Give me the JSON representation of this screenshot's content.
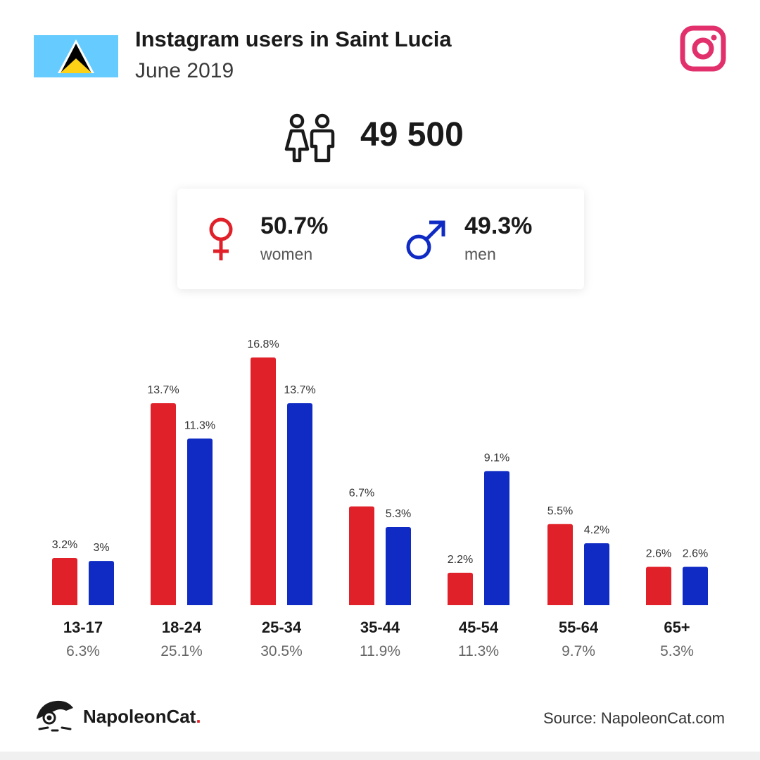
{
  "header": {
    "title": "Instagram users in Saint Lucia",
    "subtitle": "June 2019"
  },
  "flag": {
    "name": "saint-lucia-flag",
    "colors": {
      "field": "#66ccff",
      "white": "#ffffff",
      "black": "#000000",
      "yellow": "#fcd116"
    }
  },
  "brand_icon": {
    "name": "instagram-icon",
    "color": "#e1306c"
  },
  "total": {
    "value": "49 500",
    "icon": "people-icon"
  },
  "gender": {
    "women": {
      "pct": "50.7%",
      "label": "women",
      "icon": "female-symbol-icon",
      "color": "#e0212a"
    },
    "men": {
      "pct": "49.3%",
      "label": "men",
      "icon": "male-symbol-icon",
      "color": "#0f2bc4"
    }
  },
  "chart_data": {
    "type": "bar",
    "categories": [
      "13-17",
      "18-24",
      "25-34",
      "35-44",
      "45-54",
      "55-64",
      "65+"
    ],
    "totals": [
      "6.3%",
      "25.1%",
      "30.5%",
      "11.9%",
      "11.3%",
      "9.7%",
      "5.3%"
    ],
    "series": [
      {
        "values": [
          3.2,
          13.7,
          16.8,
          6.7,
          2.2,
          5.5,
          2.6
        ],
        "labels": [
          "3.2%",
          "13.7%",
          "16.8%",
          "6.7%",
          "2.2%",
          "5.5%",
          "2.6%"
        ],
        "color": "#e0212a"
      },
      {
        "values": [
          3.0,
          11.3,
          13.7,
          5.3,
          9.1,
          4.2,
          2.6
        ],
        "labels": [
          "3%",
          "11.3%",
          "13.7%",
          "5.3%",
          "9.1%",
          "4.2%",
          "2.6%"
        ],
        "color": "#0f2bc4"
      }
    ]
  },
  "footer": {
    "logo_text": "NapoleonCat",
    "logo_dot": ".",
    "logo_icon": "napoleoncat-logo-icon",
    "source": "Source: NapoleonCat.com"
  }
}
